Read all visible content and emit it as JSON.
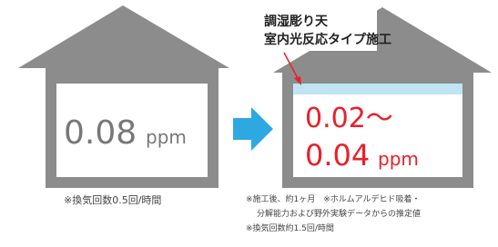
{
  "callout": {
    "line1": "調湿彫り天",
    "line2": "室内光反応タイプ施工"
  },
  "left_house": {
    "value": "0.08",
    "unit": "ppm",
    "note": "※換気回数0.5回/時間"
  },
  "right_house": {
    "value_line1": "0.02～",
    "value_line2": "0.04",
    "unit": "ppm",
    "notes": [
      "※施工後、約1ヶ月　※ホルムアルデヒド吸着・",
      "分解能力および野外実験データからの推定値",
      "※換気回数約1.5回/時間"
    ]
  }
}
